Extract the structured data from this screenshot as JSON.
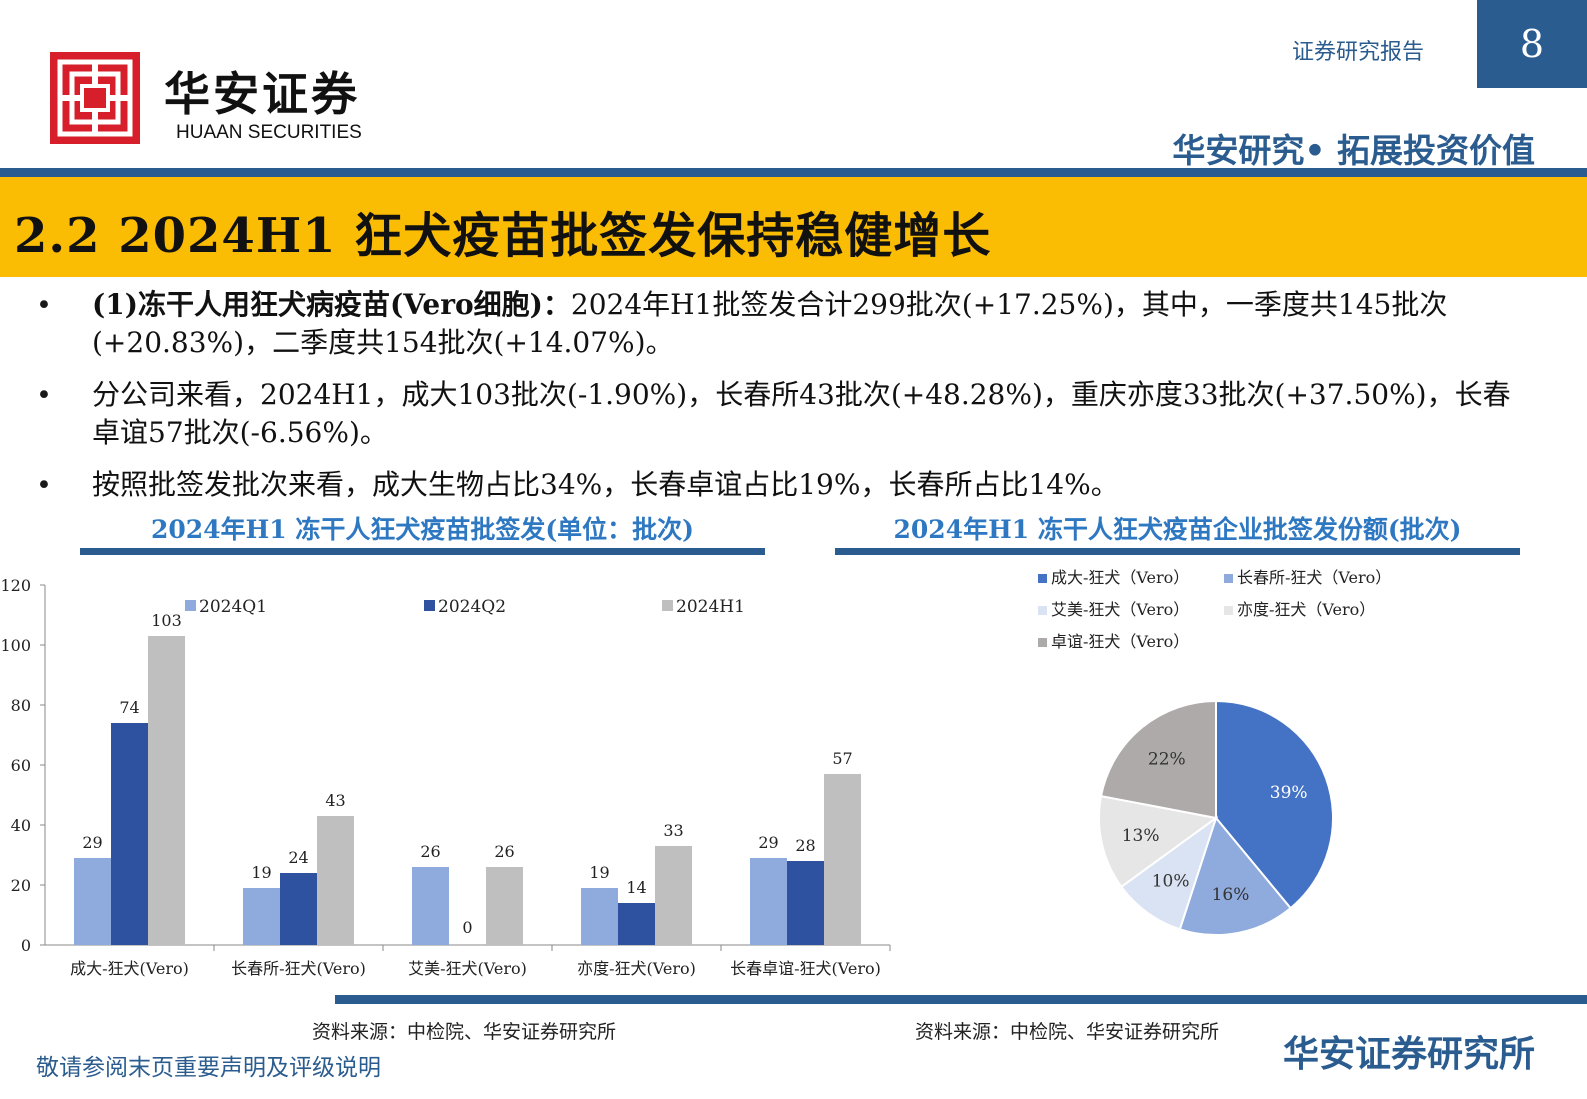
{
  "header": {
    "brand_cn": "华安证券",
    "brand_en": "HUAAN SECURITIES",
    "report_type": "证券研究报告",
    "page_number": "8",
    "slogan": "华安研究• 拓展投资价值",
    "colors": {
      "primary": "#2b5c8f",
      "title_band": "#fbbc04",
      "logo_red": "#d61f2a"
    }
  },
  "section_title": "2.2 2024H1 狂犬疫苗批签发保持稳健增长",
  "bullets": [
    {
      "bold": "(1)冻干人用狂犬病疫苗(Vero细胞)：",
      "text": "2024年H1批签发合计299批次(+17.25%)，其中，一季度共145批次(+20.83%)，二季度共154批次(+14.07%)。"
    },
    {
      "bold": "",
      "text": "分公司来看，2024H1，成大103批次(-1.90%)，长春所43批次(+48.28%)，重庆亦度33批次(+37.50%)，长春卓谊57批次(-6.56%)。"
    },
    {
      "bold": "",
      "text": "按照批签发批次来看，成大生物占比34%，长春卓谊占比19%，长春所占比14%。"
    }
  ],
  "left_chart": {
    "heading": "2024年H1 冻干人狂犬疫苗批签发(单位：批次)",
    "source": "资料来源：中检院、华安证券研究所"
  },
  "right_chart": {
    "heading": "2024年H1 冻干人狂犬疫苗企业批签发份额(批次)",
    "source": "资料来源：中检院、华安证券研究所"
  },
  "footer": {
    "disclaimer": "敬请参阅末页重要声明及评级说明",
    "brand": "华安证券研究所"
  },
  "chart_data": [
    {
      "type": "bar",
      "categories": [
        "成大-狂犬(Vero)",
        "长春所-狂犬(Vero)",
        "艾美-狂犬(Vero)",
        "亦度-狂犬(Vero)",
        "长春卓谊-狂犬(Vero)"
      ],
      "series": [
        {
          "name": "2024Q1",
          "values": [
            29,
            19,
            26,
            19,
            29
          ],
          "color": "#8faadc"
        },
        {
          "name": "2024Q2",
          "values": [
            74,
            24,
            0,
            14,
            28
          ],
          "color": "#2f52a0"
        },
        {
          "name": "2024H1",
          "values": [
            103,
            43,
            26,
            33,
            57
          ],
          "color": "#bfbfbf"
        }
      ],
      "yticks": [
        0,
        20,
        40,
        60,
        80,
        100,
        120
      ],
      "ylim": [
        0,
        120
      ],
      "legend_position": "top"
    },
    {
      "type": "pie",
      "labels": [
        "成大-狂犬（Vero）",
        "长春所-狂犬（Vero）",
        "艾美-狂犬（Vero）",
        "亦度-狂犬（Vero）",
        "卓谊-狂犬（Vero）"
      ],
      "values": [
        39,
        16,
        10,
        13,
        22
      ],
      "value_labels": [
        "39%",
        "16%",
        "10%",
        "13%",
        "22%"
      ],
      "colors": [
        "#4472c4",
        "#8faadc",
        "#dae3f3",
        "#e7e6e6",
        "#aeaaaa"
      ],
      "label_colors": [
        "#ffffff",
        "#333333",
        "#333333",
        "#333333",
        "#333333"
      ],
      "legend_position": "top"
    }
  ]
}
